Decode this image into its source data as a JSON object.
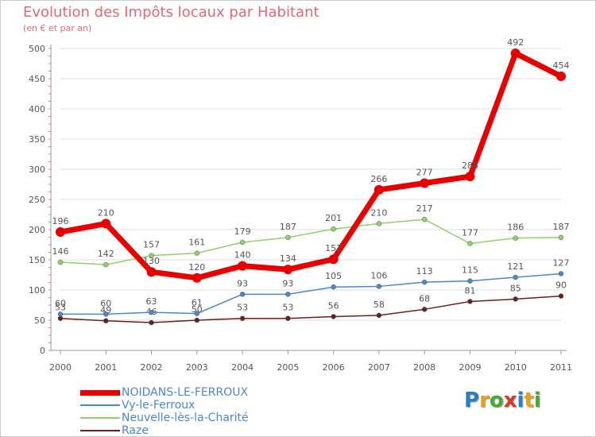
{
  "chart_data": {
    "type": "line",
    "title": "Evolution des Impôts locaux par Habitant",
    "subtitle": "(en € et par an)",
    "x": [
      "2000",
      "2001",
      "2002",
      "2003",
      "2004",
      "2005",
      "2006",
      "2007",
      "2008",
      "2009",
      "2010",
      "2011"
    ],
    "ylim": [
      0,
      500
    ],
    "yticks": [
      0,
      50,
      100,
      150,
      200,
      250,
      300,
      350,
      400,
      450,
      500
    ],
    "series": [
      {
        "name": "Raze",
        "color": "#6b1f1f",
        "values": [
          53,
          49,
          46,
          50,
          53,
          53,
          56,
          58,
          68,
          81,
          85,
          90
        ]
      },
      {
        "name": "Vy-le-Ferroux",
        "color": "#4f86c6",
        "values": [
          60,
          60,
          63,
          61,
          93,
          93,
          105,
          106,
          113,
          115,
          121,
          127
        ]
      },
      {
        "name": "Neuvelle-lès-la-Charité",
        "color": "#8fd16a",
        "values": [
          146,
          142,
          157,
          161,
          179,
          187,
          201,
          210,
          217,
          177,
          186,
          187
        ]
      },
      {
        "name": "NOIDANS-LE-FERROUX",
        "color": "#e80000",
        "values": [
          196,
          210,
          130,
          120,
          140,
          134,
          151,
          266,
          277,
          288,
          492,
          454
        ]
      }
    ]
  },
  "legend": [
    {
      "name": "NOIDANS-LE-FERROUX",
      "color": "#e80000"
    },
    {
      "name": "Vy-le-Ferroux",
      "color": "#4f86c6"
    },
    {
      "name": "Neuvelle-lès-la-Charité",
      "color": "#8fd16a"
    },
    {
      "name": "Raze",
      "color": "#6b1f1f"
    }
  ],
  "logo": {
    "text": "Proxiti",
    "letters": [
      {
        "ch": "P",
        "color": "#2a7fc4"
      },
      {
        "ch": "r",
        "color": "#e8a11a"
      },
      {
        "ch": "o",
        "color": "#4aa832"
      },
      {
        "ch": "x",
        "color": "#d43a2a"
      },
      {
        "ch": "i",
        "color": "#2a7fc4"
      },
      {
        "ch": "t",
        "color": "#e8a11a"
      },
      {
        "ch": "i",
        "color": "#4aa832"
      }
    ]
  }
}
